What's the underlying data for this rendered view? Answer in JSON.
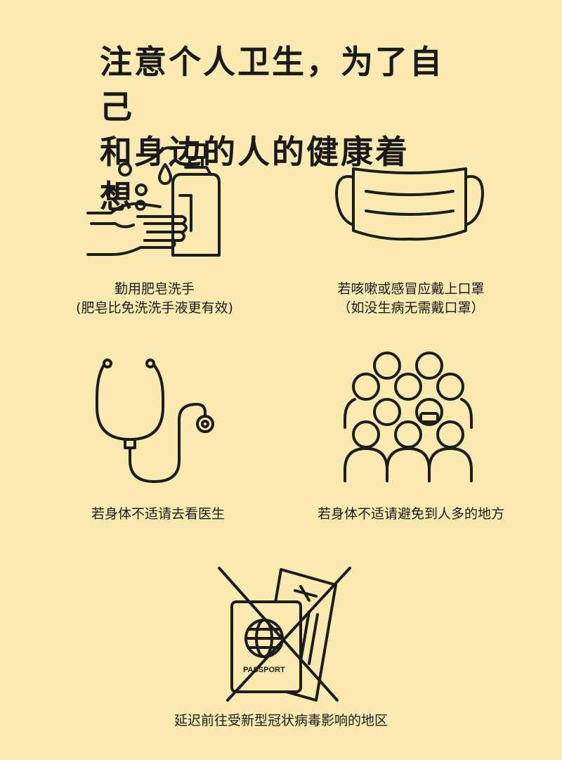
{
  "title": {
    "line1": "注意个人卫生，为了自己",
    "line2": "和身边的人的健康着想。"
  },
  "items": [
    {
      "icon": "hand-wash-icon",
      "line1": "勤用肥皂洗手",
      "line2": "(肥皂比免洗洗手液更有效)"
    },
    {
      "icon": "face-mask-icon",
      "line1": "若咳嗽或感冒应戴上口罩",
      "line2": "（如没生病无需戴口罩）"
    },
    {
      "icon": "stethoscope-icon",
      "line1": "若身体不适请去看医生",
      "line2": ""
    },
    {
      "icon": "crowd-icon",
      "line1": "若身体不适请避免到人多的地方",
      "line2": ""
    },
    {
      "icon": "no-travel-icon",
      "line1": "延迟前往受新型冠状病毒影响的地区",
      "line2": "",
      "passport_label": "PASSPORT"
    }
  ]
}
